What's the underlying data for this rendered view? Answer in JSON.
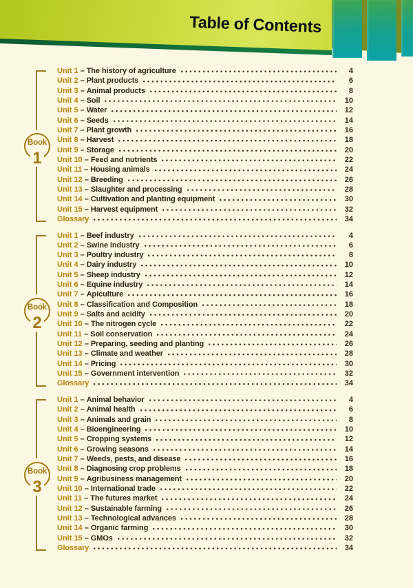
{
  "header": {
    "title": "Table of Contents"
  },
  "colors": {
    "page_background": "#fcf7e2",
    "band_chartreuse": "#c9d93a",
    "band_dark_green": "#11733e",
    "teal_bar": "#0aa2a6",
    "gold_accent": "#b5860b",
    "text_dark": "#2e2617"
  },
  "books": [
    {
      "label": "Book",
      "number": "1",
      "entries": [
        {
          "unit": "Unit 1",
          "title": "The history of agriculture",
          "page": "4"
        },
        {
          "unit": "Unit 2",
          "title": "Plant products",
          "page": "6"
        },
        {
          "unit": "Unit 3",
          "title": "Animal products",
          "page": "8"
        },
        {
          "unit": "Unit 4",
          "title": "Soil",
          "page": "10"
        },
        {
          "unit": "Unit 5",
          "title": "Water",
          "page": "12"
        },
        {
          "unit": "Unit 6",
          "title": "Seeds",
          "page": "14"
        },
        {
          "unit": "Unit 7",
          "title": "Plant growth",
          "page": "16"
        },
        {
          "unit": "Unit 8",
          "title": "Harvest",
          "page": "18"
        },
        {
          "unit": "Unit 9",
          "title": "Storage",
          "page": "20"
        },
        {
          "unit": "Unit 10",
          "title": "Feed and nutrients",
          "page": "22"
        },
        {
          "unit": "Unit 11",
          "title": "Housing animals",
          "page": "24"
        },
        {
          "unit": "Unit 12",
          "title": "Breeding",
          "page": "26"
        },
        {
          "unit": "Unit 13",
          "title": "Slaughter and processing",
          "page": "28"
        },
        {
          "unit": "Unit 14",
          "title": "Cultivation and planting equipment",
          "page": "30"
        },
        {
          "unit": "Unit 15",
          "title": "Harvest equipment",
          "page": "32"
        },
        {
          "unit": "",
          "title": "Glossary",
          "page": "34"
        }
      ]
    },
    {
      "label": "Book",
      "number": "2",
      "entries": [
        {
          "unit": "Unit 1",
          "title": "Beef industry",
          "page": "4"
        },
        {
          "unit": "Unit 2",
          "title": "Swine industry",
          "page": "6"
        },
        {
          "unit": "Unit 3",
          "title": "Poultry industry",
          "page": "8"
        },
        {
          "unit": "Unit 4",
          "title": "Dairy industry",
          "page": "10"
        },
        {
          "unit": "Unit 5",
          "title": "Sheep industry",
          "page": "12"
        },
        {
          "unit": "Unit 6",
          "title": "Equine industry",
          "page": "14"
        },
        {
          "unit": "Unit 7",
          "title": "Apiculture",
          "page": "16"
        },
        {
          "unit": "Unit 8",
          "title": "Classification and Composition",
          "page": "18"
        },
        {
          "unit": "Unit 9",
          "title": "Salts and acidity",
          "page": "20"
        },
        {
          "unit": "Unit 10",
          "title": "The nitrogen cycle",
          "page": "22"
        },
        {
          "unit": "Unit 11",
          "title": "Soil conservation",
          "page": "24"
        },
        {
          "unit": "Unit 12",
          "title": "Preparing, seeding and planting",
          "page": "26"
        },
        {
          "unit": "Unit 13",
          "title": "Climate and weather",
          "page": "28"
        },
        {
          "unit": "Unit 14",
          "title": "Pricing",
          "page": "30"
        },
        {
          "unit": "Unit 15",
          "title": "Government intervention",
          "page": "32"
        },
        {
          "unit": "",
          "title": "Glossary",
          "page": "34"
        }
      ]
    },
    {
      "label": "Book",
      "number": "3",
      "entries": [
        {
          "unit": "Unit 1",
          "title": "Animal behavior",
          "page": "4"
        },
        {
          "unit": "Unit 2",
          "title": "Animal health",
          "page": "6"
        },
        {
          "unit": "Unit 3",
          "title": "Animals and grain",
          "page": "8"
        },
        {
          "unit": "Unit 4",
          "title": "Bioengineering",
          "page": "10"
        },
        {
          "unit": "Unit 5",
          "title": "Cropping systems",
          "page": "12"
        },
        {
          "unit": "Unit 6",
          "title": "Growing seasons",
          "page": "14"
        },
        {
          "unit": "Unit 7",
          "title": "Weeds, pests, and disease",
          "page": "16"
        },
        {
          "unit": "Unit 8",
          "title": "Diagnosing crop problems",
          "page": "18"
        },
        {
          "unit": "Unit 9",
          "title": "Agribusiness management",
          "page": "20"
        },
        {
          "unit": "Unit 10",
          "title": "International trade",
          "page": "22"
        },
        {
          "unit": "Unit 11",
          "title": "The futures market",
          "page": "24"
        },
        {
          "unit": "Unit 12",
          "title": "Sustainable farming",
          "page": "26"
        },
        {
          "unit": "Unit 13",
          "title": "Technological advances",
          "page": "28"
        },
        {
          "unit": "Unit 14",
          "title": "Organic farming",
          "page": "30"
        },
        {
          "unit": "Unit 15",
          "title": "GMOs",
          "page": "32"
        },
        {
          "unit": "",
          "title": "Glossary",
          "page": "34"
        }
      ]
    }
  ],
  "entry_dash": "–"
}
